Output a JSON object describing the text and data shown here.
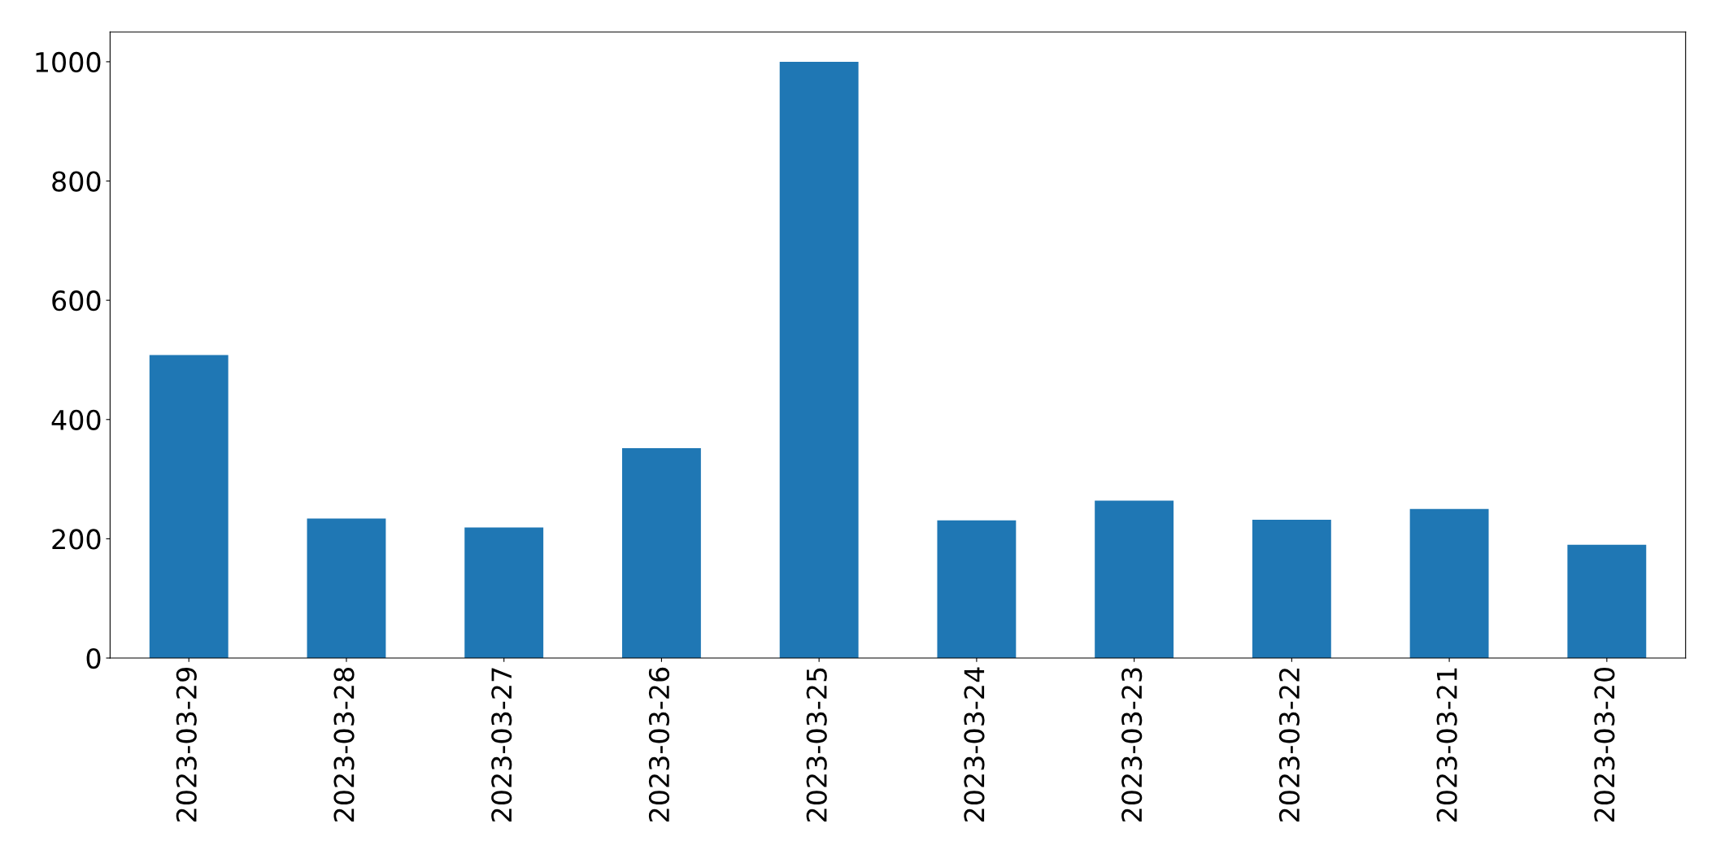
{
  "chart_data": {
    "type": "bar",
    "categories": [
      "2023-03-29",
      "2023-03-28",
      "2023-03-27",
      "2023-03-26",
      "2023-03-25",
      "2023-03-24",
      "2023-03-23",
      "2023-03-22",
      "2023-03-21",
      "2023-03-20"
    ],
    "values": [
      508,
      234,
      219,
      352,
      1000,
      231,
      264,
      232,
      250,
      190
    ],
    "color": "#1f77b4",
    "ylim": [
      0,
      1050
    ],
    "yticks": [
      0,
      200,
      400,
      600,
      800,
      1000
    ],
    "grid": false,
    "legend": false
  }
}
